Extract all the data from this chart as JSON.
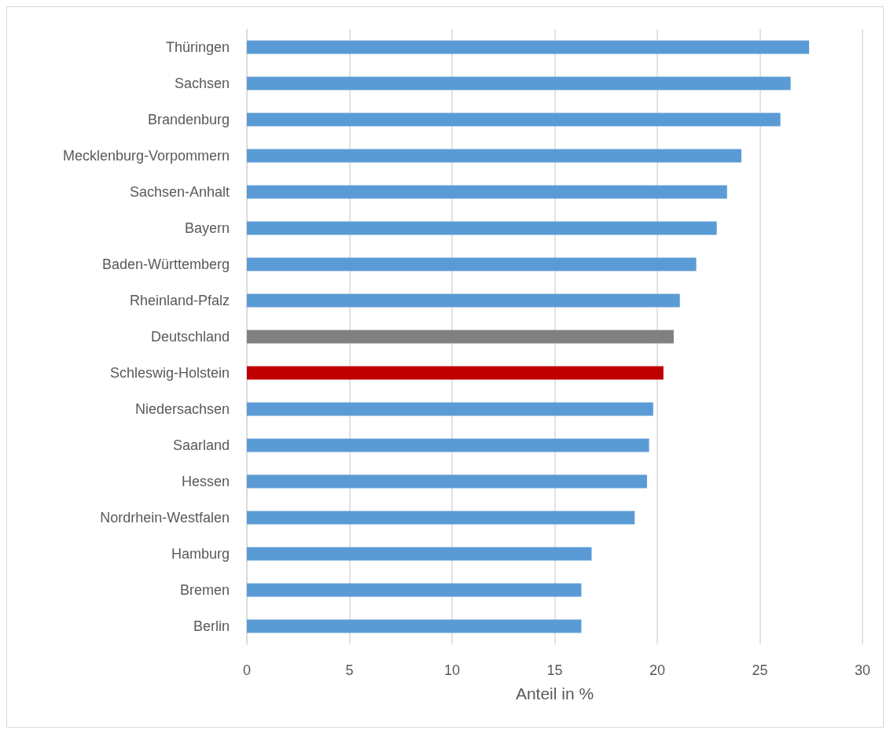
{
  "chart_data": {
    "type": "bar",
    "orientation": "horizontal",
    "xlabel": "Anteil in %",
    "categories": [
      "Thüringen",
      "Sachsen",
      "Brandenburg",
      "Mecklenburg-Vorpommern",
      "Sachsen-Anhalt",
      "Bayern",
      "Baden-Württemberg",
      "Rheinland-Pfalz",
      "Deutschland",
      "Schleswig-Holstein",
      "Niedersachsen",
      "Saarland",
      "Hessen",
      "Nordrhein-Westfalen",
      "Hamburg",
      "Bremen",
      "Berlin"
    ],
    "values": [
      27.4,
      26.5,
      26.0,
      24.1,
      23.4,
      22.9,
      21.9,
      21.1,
      20.8,
      20.3,
      19.8,
      19.6,
      19.5,
      18.9,
      16.8,
      16.3,
      16.3
    ],
    "colors": [
      "#5b9bd5",
      "#5b9bd5",
      "#5b9bd5",
      "#5b9bd5",
      "#5b9bd5",
      "#5b9bd5",
      "#5b9bd5",
      "#5b9bd5",
      "#808080",
      "#c00000",
      "#5b9bd5",
      "#5b9bd5",
      "#5b9bd5",
      "#5b9bd5",
      "#5b9bd5",
      "#5b9bd5",
      "#5b9bd5"
    ],
    "xlim": [
      0,
      30
    ],
    "xticks": [
      0,
      5,
      10,
      15,
      20,
      25,
      30
    ],
    "grid": "x"
  }
}
